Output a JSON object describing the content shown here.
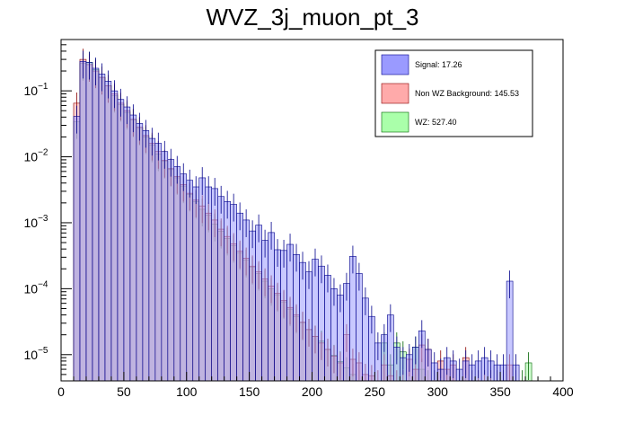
{
  "chart_data": {
    "type": "bar",
    "title": "WVZ_3j_muon_pt_3",
    "xlabel": "",
    "ylabel": "",
    "x_range": [
      0,
      400
    ],
    "y_range": [
      4e-06,
      0.6
    ],
    "y_scale": "log",
    "grid": false,
    "bin_width": 10,
    "x_ticks": [
      0,
      50,
      100,
      150,
      200,
      250,
      300,
      350,
      400
    ],
    "y_ticks": [
      {
        "value": 0.1,
        "base": "10",
        "exp": "−1"
      },
      {
        "value": 0.01,
        "base": "10",
        "exp": "−2"
      },
      {
        "value": 0.001,
        "base": "10",
        "exp": "−3"
      },
      {
        "value": 0.0001,
        "base": "10",
        "exp": "−4"
      },
      {
        "value": 1e-05,
        "base": "10",
        "exp": "−5"
      }
    ],
    "legend_position": "top-right",
    "series": [
      {
        "name": "Signal: 17.26",
        "color": "#9a9aff",
        "edge": "#00008b",
        "bins_lo": [
          10,
          15,
          20,
          25,
          30,
          35,
          40,
          45,
          50,
          55,
          60,
          65,
          70,
          75,
          80,
          85,
          90,
          95,
          100,
          105,
          110,
          115,
          120,
          125,
          130,
          135,
          140,
          145,
          150,
          155,
          160,
          165,
          170,
          175,
          180,
          185,
          190,
          195,
          200,
          205,
          210,
          215,
          220,
          225,
          230,
          235,
          240,
          245,
          250,
          255,
          260,
          265,
          270,
          275,
          280,
          285,
          290,
          295,
          300,
          305,
          310,
          315,
          320,
          325,
          330,
          335,
          340,
          345,
          350,
          355,
          360
        ],
        "values": [
          0.041,
          0.28,
          0.27,
          0.22,
          0.18,
          0.14,
          0.1,
          0.074,
          0.057,
          0.043,
          0.032,
          0.025,
          0.019,
          0.016,
          0.012,
          0.0091,
          0.0071,
          0.0055,
          0.0044,
          0.0035,
          0.0048,
          0.0035,
          0.0033,
          0.0025,
          0.0021,
          0.0019,
          0.0014,
          0.0011,
          0.00075,
          0.00092,
          0.00054,
          0.00071,
          0.00039,
          0.00038,
          0.00047,
          0.00033,
          0.00025,
          0.00018,
          0.00028,
          0.00022,
          0.00016,
          0.0001,
          8e-05,
          0.00012,
          0.00031,
          0.00017,
          7.2e-05,
          3.8e-05,
          1.5e-05,
          2e-05,
          4e-05,
          1.3e-05,
          9e-06,
          1e-05,
          1.3e-05,
          2.3e-05,
          1.2e-05,
          7.5e-06,
          6e-06,
          9e-06,
          8e-06,
          6e-06,
          8e-06,
          7e-06,
          8e-06,
          9e-06,
          8e-06,
          7e-06,
          7e-06,
          0.00013,
          7e-06
        ]
      },
      {
        "name": "Non WZ Background: 145.53",
        "color": "#ffaaaa",
        "edge": "#8b0000",
        "bins_lo": [
          10,
          15,
          20,
          25,
          30,
          35,
          40,
          45,
          50,
          55,
          60,
          65,
          70,
          75,
          80,
          85,
          90,
          95,
          100,
          105,
          110,
          115,
          120,
          125,
          130,
          135,
          140,
          145,
          150,
          155,
          160,
          165,
          170,
          175,
          180,
          185,
          190,
          195,
          200,
          205,
          210,
          215,
          220,
          225,
          230,
          235,
          240,
          245,
          250,
          255,
          260,
          265,
          270,
          275,
          280,
          285,
          290,
          295,
          300,
          305,
          310,
          315,
          320,
          325,
          330,
          335,
          340,
          345,
          350,
          355,
          360
        ],
        "values": [
          0.065,
          0.3,
          0.25,
          0.2,
          0.16,
          0.12,
          0.09,
          0.065,
          0.05,
          0.037,
          0.028,
          0.021,
          0.016,
          0.012,
          0.0088,
          0.0066,
          0.005,
          0.0038,
          0.0028,
          0.0022,
          0.0018,
          0.0014,
          0.0011,
          0.0008,
          0.00062,
          0.00048,
          0.00037,
          0.00029,
          0.00022,
          0.00018,
          0.00014,
          0.00011,
          8.5e-05,
          6.6e-05,
          5.2e-05,
          4e-05,
          3.1e-05,
          2.4e-05,
          1.9e-05,
          1.5e-05,
          1.2e-05,
          9.5e-06,
          7.5e-06,
          2e-05,
          8.5e-06,
          7.5e-06,
          5e-06,
          4.8e-06,
          4e-06,
          7e-06,
          4.8e-06,
          4e-06,
          4e-06,
          8.5e-06,
          6e-06,
          1.4e-05,
          1.2e-05,
          4e-06,
          8e-06,
          6e-06,
          7e-06,
          4e-06,
          9e-06,
          4e-06,
          4e-06,
          4e-06,
          4e-06,
          4e-06,
          4e-06,
          7e-06,
          4e-06
        ]
      },
      {
        "name": "WZ: 527.40",
        "color": "#aaffaa",
        "edge": "#006400",
        "bins_lo": [
          10,
          15,
          20,
          25,
          30,
          35,
          40,
          45,
          50,
          55,
          60,
          65,
          70,
          75,
          80,
          85,
          90,
          95,
          100,
          105,
          110,
          115,
          120,
          125,
          130,
          135,
          140,
          145,
          150,
          155,
          160,
          165,
          170,
          175,
          180,
          185,
          190,
          195,
          200,
          205,
          210,
          215,
          220,
          225,
          230,
          235,
          240,
          245,
          250,
          255,
          260,
          265,
          270,
          275,
          280,
          285,
          290,
          295,
          300,
          305,
          310,
          315,
          320,
          325,
          330,
          335,
          340,
          345,
          350,
          355,
          360,
          365,
          370
        ],
        "values": [
          0.034,
          0.26,
          0.27,
          0.21,
          0.16,
          0.12,
          0.085,
          0.062,
          0.047,
          0.036,
          0.027,
          0.02,
          0.015,
          0.011,
          0.0085,
          0.0064,
          0.0048,
          0.0036,
          0.0027,
          0.0021,
          0.0016,
          0.0013,
          0.00095,
          0.00074,
          0.00058,
          0.00045,
          0.00035,
          0.00027,
          0.00021,
          0.00017,
          0.00013,
          0.0001,
          8.1e-05,
          6.3e-05,
          4.9e-05,
          3.8e-05,
          3e-05,
          2.4e-05,
          1.9e-05,
          1.6e-05,
          1.2e-05,
          9.7e-06,
          7.8e-06,
          6.3e-06,
          5e-06,
          4e-06,
          3e-06,
          2.5e-06,
          2e-06,
          1.5e-05,
          7e-06,
          1.5e-05,
          1.1e-05,
          4e-06,
          1.3e-05,
          6e-06,
          4e-06,
          4e-06,
          4e-06,
          4e-06,
          4e-06,
          4e-06,
          4e-06,
          4e-06,
          4e-06,
          4e-06,
          4e-06,
          4e-06,
          4e-06,
          4e-06,
          4e-06,
          4e-06,
          7.5e-06
        ]
      }
    ]
  }
}
